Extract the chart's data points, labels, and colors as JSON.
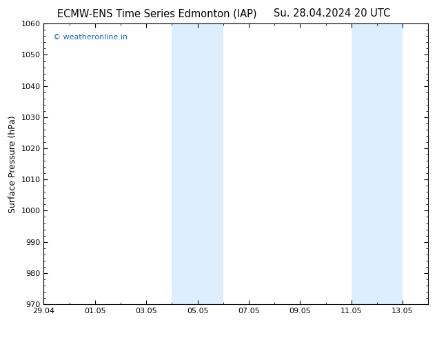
{
  "title_left": "ECMW-ENS Time Series Edmonton (IAP)",
  "title_right": "Su. 28.04.2024 20 UTC",
  "ylabel": "Surface Pressure (hPa)",
  "ylim": [
    970,
    1060
  ],
  "yticks": [
    970,
    980,
    990,
    1000,
    1010,
    1020,
    1030,
    1040,
    1050,
    1060
  ],
  "xtick_labels": [
    "29.04",
    "01.05",
    "03.05",
    "05.05",
    "07.05",
    "09.05",
    "11.05",
    "13.05"
  ],
  "xtick_positions_days": [
    0,
    2,
    4,
    6,
    8,
    10,
    12,
    14
  ],
  "xlim": [
    0,
    15
  ],
  "shaded_bands": [
    {
      "x_start_days": 5,
      "x_end_days": 7
    },
    {
      "x_start_days": 12,
      "x_end_days": 14
    }
  ],
  "shaded_color": "#dceeff",
  "background_color": "#ffffff",
  "plot_bg_color": "#ffffff",
  "watermark_text": "© weatheronline.in",
  "watermark_color": "#1464c0",
  "title_fontsize": 10.5,
  "axis_label_fontsize": 9,
  "tick_fontsize": 8,
  "watermark_fontsize": 8
}
